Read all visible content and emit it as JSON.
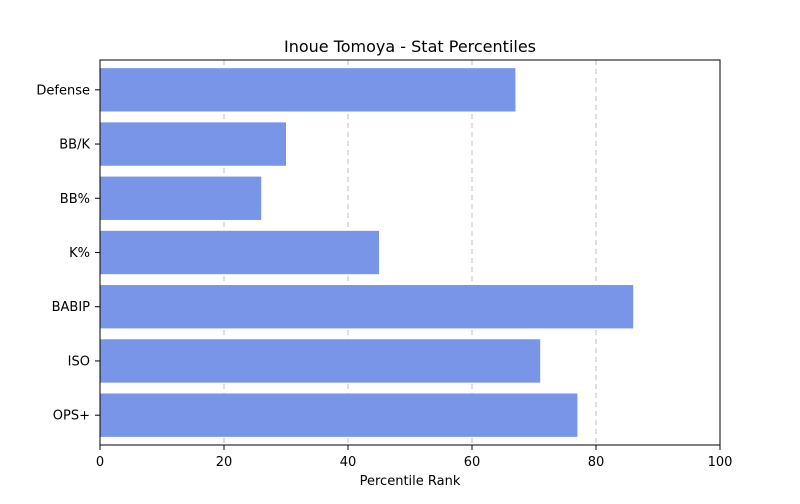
{
  "chart_data": {
    "type": "bar",
    "orientation": "horizontal",
    "title": "Inoue Tomoya - Stat Percentiles",
    "xlabel": "Percentile Rank",
    "ylabel": "",
    "categories": [
      "Defense",
      "BB/K",
      "BB%",
      "K%",
      "BABIP",
      "ISO",
      "OPS+"
    ],
    "values": [
      67,
      30,
      26,
      45,
      86,
      71,
      77
    ],
    "xlim": [
      0,
      100
    ],
    "xticks": [
      0,
      20,
      40,
      60,
      80,
      100
    ],
    "grid": "vertical dashed",
    "bar_color": "#7895e8"
  }
}
